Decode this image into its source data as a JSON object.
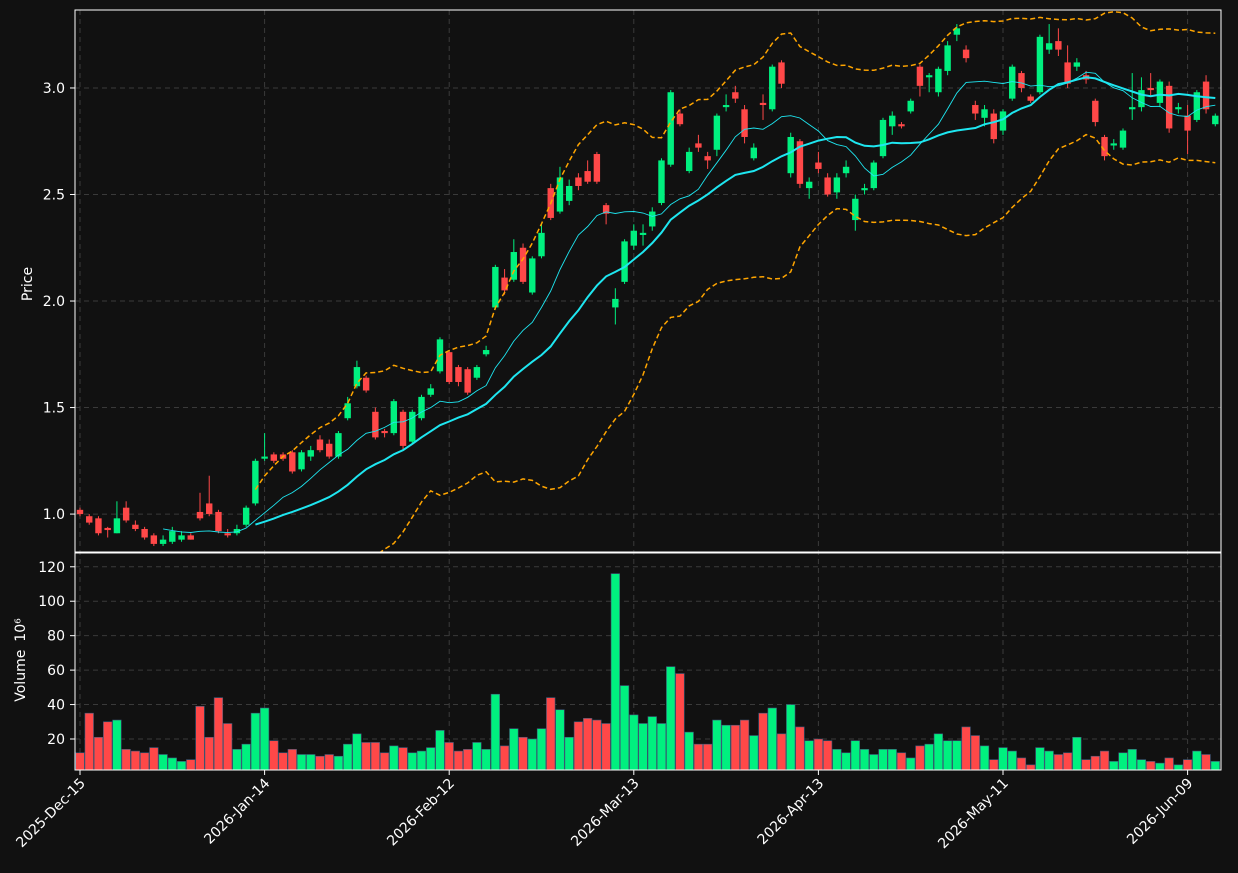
{
  "chart_data": {
    "type": "candlestick",
    "ylabel": "Price",
    "ylabel2": "Volume",
    "volume_scale": "10⁶",
    "up_color": "#00f07f",
    "down_color": "#ff4848",
    "mav_color": "#1ee6f0",
    "band_color": "#ffa500",
    "mav": [
      10,
      20
    ],
    "bands": 2,
    "grid": true,
    "ylim": [
      0.822,
      3.366
    ],
    "yticks": [
      {
        "value": 1,
        "label": "1.0"
      },
      1.5,
      {
        "value": 2,
        "label": "2.0"
      },
      2.5,
      {
        "value": 3,
        "label": "3.0"
      }
    ],
    "y2lim": [
      2,
      128
    ],
    "y2ticks": [
      20,
      40,
      60,
      80,
      100,
      120
    ],
    "categories": [
      "2025-Dec-15",
      null,
      null,
      null,
      null,
      null,
      null,
      null,
      null,
      null,
      null,
      null,
      null,
      null,
      null,
      null,
      null,
      null,
      null,
      null,
      "2026-Jan-14",
      null,
      null,
      null,
      null,
      null,
      null,
      null,
      null,
      null,
      null,
      null,
      null,
      null,
      null,
      null,
      null,
      null,
      null,
      null,
      "2026-Feb-12",
      null,
      null,
      null,
      null,
      null,
      null,
      null,
      null,
      null,
      null,
      null,
      null,
      null,
      null,
      null,
      null,
      null,
      null,
      null,
      "2026-Mar-13",
      null,
      null,
      null,
      null,
      null,
      null,
      null,
      null,
      null,
      null,
      null,
      null,
      null,
      null,
      null,
      null,
      null,
      null,
      null,
      "2026-Apr-13",
      null,
      null,
      null,
      null,
      null,
      null,
      null,
      null,
      null,
      null,
      null,
      null,
      null,
      null,
      null,
      null,
      null,
      null,
      null,
      "2026-May-11",
      null,
      null,
      null,
      null,
      null,
      null,
      null,
      null,
      null,
      null,
      null,
      null,
      null,
      null,
      null,
      null,
      null,
      null,
      null,
      "2026-Jun-09",
      null,
      null,
      null
    ],
    "open": [
      1.02,
      0.99,
      0.98,
      0.935,
      0.91,
      1.03,
      0.95,
      0.93,
      0.9,
      0.86,
      0.87,
      0.88,
      0.9,
      1.01,
      1.05,
      1.01,
      0.91,
      0.91,
      0.95,
      1.05,
      1.26,
      1.28,
      1.28,
      1.29,
      1.21,
      1.27,
      1.35,
      1.33,
      1.27,
      1.45,
      1.6,
      1.64,
      1.48,
      1.39,
      1.38,
      1.48,
      1.34,
      1.45,
      1.56,
      1.67,
      1.76,
      1.69,
      1.68,
      1.64,
      1.75,
      1.97,
      2.11,
      2.1,
      2.25,
      2.04,
      2.21,
      2.53,
      2.42,
      2.47,
      2.58,
      2.61,
      2.69,
      2.45,
      1.97,
      2.09,
      2.26,
      2.31,
      2.35,
      2.46,
      2.64,
      2.88,
      2.61,
      2.74,
      2.68,
      2.71,
      2.91,
      2.98,
      2.9,
      2.67,
      2.93,
      2.9,
      3.12,
      2.6,
      2.75,
      2.53,
      2.65,
      2.58,
      2.51,
      2.6,
      2.38,
      2.52,
      2.53,
      2.68,
      2.82,
      2.83,
      2.89,
      3.1,
      3.05,
      2.98,
      3.08,
      3.25,
      3.18,
      2.92,
      2.86,
      2.88,
      2.8,
      2.95,
      3.07,
      2.96,
      2.98,
      3.18,
      3.22,
      3.12,
      3.1,
      3.06,
      2.94,
      2.77,
      2.73,
      2.72,
      2.9,
      2.91,
      3.0,
      2.93,
      3.01,
      2.9,
      2.87,
      2.85,
      3.03,
      2.83
    ],
    "high": [
      1.03,
      1.0,
      0.99,
      0.94,
      1.06,
      1.06,
      0.97,
      0.94,
      0.91,
      0.9,
      0.94,
      0.92,
      0.91,
      1.1,
      1.18,
      1.02,
      0.93,
      0.95,
      1.04,
      1.26,
      1.38,
      1.29,
      1.29,
      1.3,
      1.3,
      1.32,
      1.37,
      1.35,
      1.39,
      1.55,
      1.72,
      1.65,
      1.5,
      1.4,
      1.54,
      1.49,
      1.49,
      1.56,
      1.61,
      1.83,
      1.77,
      1.7,
      1.69,
      1.7,
      1.79,
      2.17,
      2.15,
      2.29,
      2.27,
      2.21,
      2.36,
      2.55,
      2.63,
      2.57,
      2.6,
      2.66,
      2.7,
      2.46,
      2.06,
      2.29,
      2.36,
      2.36,
      2.44,
      2.67,
      2.99,
      2.9,
      2.72,
      2.78,
      2.7,
      2.88,
      2.97,
      3.01,
      2.92,
      2.74,
      2.97,
      3.11,
      3.13,
      2.79,
      2.76,
      2.58,
      2.7,
      2.6,
      2.6,
      2.66,
      2.5,
      2.55,
      2.66,
      2.86,
      2.89,
      2.84,
      2.95,
      3.11,
      3.07,
      3.1,
      3.22,
      3.3,
      3.2,
      2.94,
      2.92,
      2.9,
      2.9,
      3.11,
      3.08,
      2.97,
      3.25,
      3.3,
      3.28,
      3.2,
      3.14,
      3.08,
      2.95,
      2.78,
      2.76,
      2.81,
      3.07,
      3.05,
      3.07,
      3.04,
      3.03,
      2.93,
      2.92,
      2.99,
      3.06,
      2.88
    ],
    "low": [
      0.99,
      0.95,
      0.9,
      0.89,
      0.91,
      0.96,
      0.92,
      0.88,
      0.85,
      0.85,
      0.86,
      0.87,
      0.88,
      0.97,
      0.99,
      0.91,
      0.89,
      0.9,
      0.94,
      1.04,
      1.25,
      1.24,
      1.25,
      1.19,
      1.2,
      1.25,
      1.29,
      1.26,
      1.26,
      1.44,
      1.59,
      1.57,
      1.35,
      1.36,
      1.37,
      1.3,
      1.33,
      1.44,
      1.55,
      1.66,
      1.61,
      1.6,
      1.56,
      1.63,
      1.74,
      1.96,
      2.03,
      2.09,
      2.08,
      2.03,
      2.2,
      2.38,
      2.41,
      2.45,
      2.52,
      2.55,
      2.55,
      2.36,
      1.89,
      2.08,
      2.24,
      2.26,
      2.33,
      2.45,
      2.63,
      2.82,
      2.6,
      2.7,
      2.62,
      2.68,
      2.89,
      2.93,
      2.74,
      2.66,
      2.85,
      2.89,
      3.0,
      2.58,
      2.53,
      2.48,
      2.6,
      2.49,
      2.48,
      2.58,
      2.33,
      2.5,
      2.52,
      2.67,
      2.78,
      2.81,
      2.88,
      2.96,
      2.98,
      2.96,
      3.06,
      3.22,
      3.12,
      2.85,
      2.82,
      2.74,
      2.78,
      2.94,
      2.98,
      2.93,
      2.97,
      3.16,
      3.15,
      3.0,
      3.08,
      3.02,
      2.82,
      2.66,
      2.71,
      2.71,
      2.85,
      2.89,
      2.96,
      2.91,
      2.79,
      2.88,
      2.69,
      2.84,
      2.88,
      2.82
    ],
    "close": [
      1.0,
      0.96,
      0.91,
      0.925,
      0.98,
      0.97,
      0.93,
      0.89,
      0.86,
      0.88,
      0.92,
      0.9,
      0.88,
      0.98,
      1.0,
      0.92,
      0.9,
      0.93,
      1.03,
      1.25,
      1.27,
      1.25,
      1.26,
      1.2,
      1.29,
      1.3,
      1.3,
      1.27,
      1.38,
      1.52,
      1.69,
      1.58,
      1.36,
      1.38,
      1.53,
      1.32,
      1.48,
      1.55,
      1.59,
      1.82,
      1.62,
      1.62,
      1.57,
      1.69,
      1.77,
      2.16,
      2.05,
      2.23,
      2.09,
      2.2,
      2.32,
      2.39,
      2.58,
      2.54,
      2.54,
      2.56,
      2.56,
      2.41,
      2.01,
      2.28,
      2.33,
      2.32,
      2.42,
      2.66,
      2.98,
      2.83,
      2.7,
      2.72,
      2.66,
      2.87,
      2.92,
      2.95,
      2.77,
      2.72,
      2.92,
      3.1,
      3.02,
      2.77,
      2.55,
      2.56,
      2.62,
      2.5,
      2.58,
      2.63,
      2.48,
      2.53,
      2.65,
      2.85,
      2.87,
      2.82,
      2.94,
      3.01,
      3.06,
      3.09,
      3.2,
      3.28,
      3.14,
      2.88,
      2.9,
      2.76,
      2.89,
      3.1,
      3.0,
      2.94,
      3.24,
      3.21,
      3.18,
      3.02,
      3.12,
      3.04,
      2.84,
      2.68,
      2.74,
      2.8,
      2.91,
      2.99,
      2.99,
      3.03,
      2.81,
      2.91,
      2.8,
      2.98,
      2.9,
      2.87
    ],
    "volume": [
      12,
      35,
      21,
      30,
      31,
      14,
      13,
      12,
      15,
      11,
      9,
      7,
      8,
      39,
      21,
      44,
      29,
      14,
      17,
      35,
      38,
      19,
      12,
      14,
      11,
      11,
      10,
      11,
      10,
      17,
      23,
      18,
      18,
      12,
      16,
      15,
      12,
      13,
      15,
      25,
      18,
      13,
      14,
      18,
      14,
      46,
      16,
      26,
      21,
      20,
      26,
      44,
      37,
      21,
      30,
      32,
      31,
      29,
      116,
      51,
      34,
      29,
      33,
      29,
      62,
      58,
      24,
      17,
      17,
      31,
      28,
      28,
      31,
      22,
      35,
      38,
      23,
      40,
      27,
      19,
      20,
      19,
      14,
      12,
      19,
      14,
      11,
      14,
      14,
      12,
      9,
      16,
      17,
      23,
      19,
      19,
      27,
      22,
      16,
      8,
      15,
      13,
      9,
      5,
      15,
      13,
      11,
      12,
      21,
      8,
      10,
      13,
      7,
      12,
      14,
      8,
      7,
      6,
      9,
      5,
      8,
      13,
      11,
      7
    ]
  }
}
